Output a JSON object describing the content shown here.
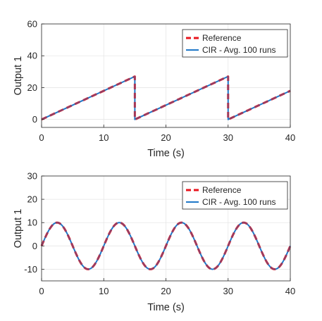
{
  "colors": {
    "reference": "#e8141c",
    "cir": "#1f78c8",
    "axis": "#262626",
    "grid": "#e6e6e6"
  },
  "chart_data": [
    {
      "type": "line",
      "xlabel": "Time (s)",
      "ylabel": "Output 1",
      "xlim": [
        0,
        40
      ],
      "ylim": [
        -5,
        60
      ],
      "xticks": [
        0,
        10,
        20,
        30,
        40
      ],
      "yticks": [
        0,
        20,
        40,
        60
      ],
      "grid": true,
      "legend_position": "top-right",
      "legend": [
        "Reference",
        "CIR - Avg. 100 runs"
      ],
      "series": [
        {
          "name": "Reference",
          "style": "dashed",
          "color": "#e8141c",
          "x": [
            0,
            15,
            15,
            30,
            30,
            40
          ],
          "y": [
            0,
            27,
            0,
            27,
            0,
            18
          ]
        },
        {
          "name": "CIR - Avg. 100 runs",
          "style": "solid",
          "color": "#1f78c8",
          "x": [
            0,
            15,
            15,
            30,
            30,
            40
          ],
          "y": [
            0,
            27,
            0,
            27,
            0,
            18
          ]
        }
      ]
    },
    {
      "type": "line",
      "xlabel": "Time (s)",
      "ylabel": "Output 1",
      "xlim": [
        0,
        40
      ],
      "ylim": [
        -15,
        30
      ],
      "xticks": [
        0,
        10,
        20,
        30,
        40
      ],
      "yticks": [
        -10,
        0,
        10,
        20,
        30
      ],
      "grid": true,
      "legend_position": "top-right",
      "legend": [
        "Reference",
        "CIR - Avg. 100 runs"
      ],
      "series": [
        {
          "name": "Reference",
          "style": "dashed",
          "color": "#e8141c",
          "x": [
            0,
            1.25,
            2.5,
            3.75,
            5,
            6.25,
            7.5,
            8.75,
            10,
            11.25,
            12.5,
            13.75,
            15,
            16.25,
            17.5,
            18.75,
            20,
            21.25,
            22.5,
            23.75,
            25,
            26.25,
            27.5,
            28.75,
            30,
            31.25,
            32.5,
            33.75,
            35,
            36.25,
            37.5,
            38.75,
            40
          ],
          "y": [
            0,
            7.07,
            10,
            7.07,
            0,
            -7.07,
            -10,
            -7.07,
            0,
            7.07,
            10,
            7.07,
            0,
            -7.07,
            -10,
            -7.07,
            0,
            7.07,
            10,
            7.07,
            0,
            -7.07,
            -10,
            -7.07,
            0,
            7.07,
            10,
            7.07,
            0,
            -7.07,
            -10,
            -7.07,
            0
          ]
        },
        {
          "name": "CIR - Avg. 100 runs",
          "style": "solid",
          "color": "#1f78c8",
          "x": [
            0,
            1.25,
            2.5,
            3.75,
            5,
            6.25,
            7.5,
            8.75,
            10,
            11.25,
            12.5,
            13.75,
            15,
            16.25,
            17.5,
            18.75,
            20,
            21.25,
            22.5,
            23.75,
            25,
            26.25,
            27.5,
            28.75,
            30,
            31.25,
            32.5,
            33.75,
            35,
            36.25,
            37.5,
            38.75,
            40
          ],
          "y": [
            0,
            7.07,
            10,
            7.07,
            0,
            -7.07,
            -10,
            -7.07,
            0,
            7.07,
            10,
            7.07,
            0,
            -7.07,
            -10,
            -7.07,
            0,
            7.07,
            10,
            7.07,
            0,
            -7.07,
            -10,
            -7.07,
            0,
            7.07,
            10,
            7.07,
            0,
            -7.07,
            -10,
            -7.07,
            0
          ]
        }
      ]
    }
  ]
}
